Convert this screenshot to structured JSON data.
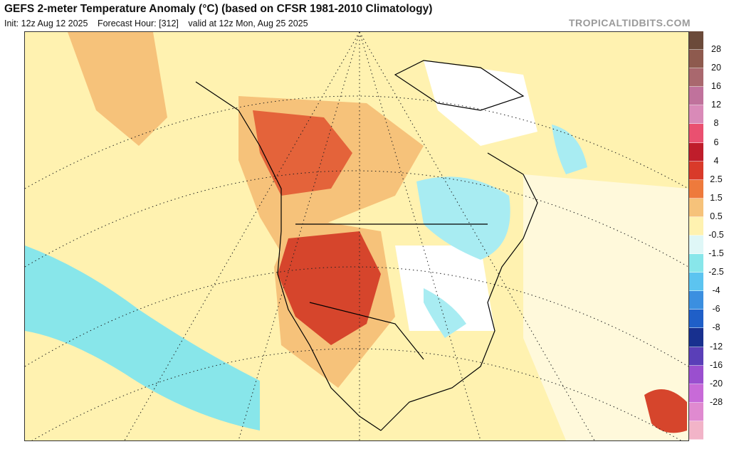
{
  "header": {
    "title": "GEFS 2-meter Temperature Anomaly (°C) (based on CFSR 1981-2010 Climatology)",
    "init": "Init: 12z Aug 12 2025",
    "forecast_hour": "Forecast Hour: [312]",
    "valid": "valid at 12z Mon, Aug 25 2025",
    "brand": "TROPICALTIDBITS.COM"
  },
  "colorbar": {
    "labels": [
      "28",
      "20",
      "16",
      "12",
      "8",
      "6",
      "4",
      "2.5",
      "1.5",
      "0.5",
      "-0.5",
      "-1.5",
      "-2.5",
      "-4",
      "-6",
      "-8",
      "-12",
      "-16",
      "-20",
      "-28"
    ],
    "colors": [
      "#6b4a3a",
      "#8e5a4e",
      "#a9686e",
      "#c0729c",
      "#d98ab8",
      "#ea5070",
      "#bf1d2b",
      "#d93a2a",
      "#ee7a3c",
      "#f6c27a",
      "#fff2b0",
      "#dff7f7",
      "#88e6ea",
      "#5cc4f0",
      "#3b8fe0",
      "#1f5fc8",
      "#18308f",
      "#5a3fb8",
      "#9a4fcf",
      "#c86ad8",
      "#e08ad0",
      "#f2b4c8"
    ]
  },
  "regions": [
    {
      "name": "anomaly-pacific-cool",
      "color": "#88e6ea"
    },
    {
      "name": "anomaly-west-hot",
      "color": "#e4633a"
    },
    {
      "name": "anomaly-warm",
      "color": "#f6c27a"
    },
    {
      "name": "anomaly-slight-warm",
      "color": "#fff2b0"
    },
    {
      "name": "anomaly-east-cool",
      "color": "#a8ecf2"
    }
  ]
}
